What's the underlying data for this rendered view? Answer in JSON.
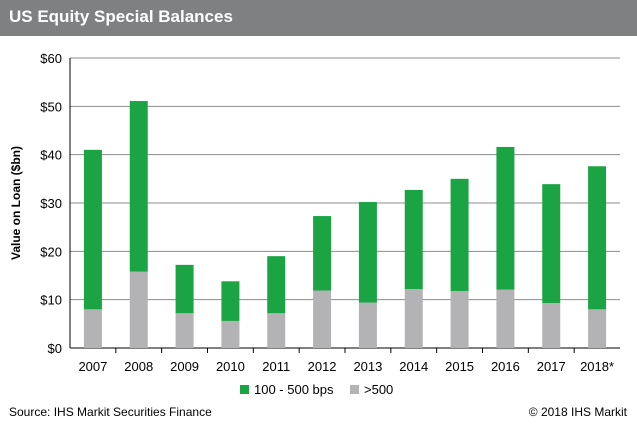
{
  "header": {
    "title": "US Equity Special Balances"
  },
  "footer": {
    "source": "Source: IHS Markit Securities Finance",
    "copyright": "© 2018 IHS Markit"
  },
  "colors": {
    "title_bar": "#7f8082",
    "series_green": "#1ba443",
    "series_gray": "#b3b3b5",
    "grid": "#8c8c8c"
  },
  "chart_data": {
    "type": "bar",
    "stacked": true,
    "title": "US Equity Special Balances",
    "ylabel": "Value on Loan ($bn)",
    "xlabel": "",
    "ylim": [
      0,
      60
    ],
    "yticks": [
      0,
      10,
      20,
      30,
      40,
      50,
      60
    ],
    "ytick_labels": [
      "$0",
      "$10",
      "$20",
      "$30",
      "$40",
      "$50",
      "$60"
    ],
    "grid": true,
    "legend_position": "bottom",
    "categories": [
      "2007",
      "2008",
      "2009",
      "2010",
      "2011",
      "2012",
      "2013",
      "2014",
      "2015",
      "2016",
      "2017",
      "2018*"
    ],
    "series": [
      {
        "name": ">500",
        "color": "#b3b3b5",
        "values": [
          8.0,
          15.8,
          7.2,
          5.6,
          7.2,
          11.9,
          9.4,
          12.2,
          11.8,
          12.1,
          9.3,
          8.0
        ]
      },
      {
        "name": "100 - 500 bps",
        "color": "#1ba443",
        "values": [
          33.0,
          35.3,
          10.0,
          8.2,
          11.8,
          15.4,
          20.8,
          20.5,
          23.2,
          29.5,
          24.6,
          29.6
        ]
      }
    ],
    "legend_order": [
      "100 - 500 bps",
      ">500"
    ]
  }
}
